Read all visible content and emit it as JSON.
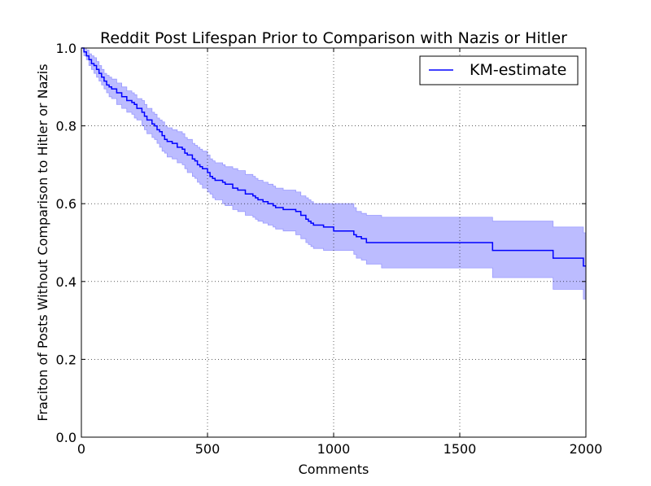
{
  "chart_data": {
    "type": "line",
    "title": "Reddit Post Lifespan Prior to Comparison with Nazis or Hitler",
    "xlabel": "Comments",
    "ylabel": "Fraciton of Posts Without Comparison to Hitler or Nazis",
    "xlim": [
      0,
      2000
    ],
    "ylim": [
      0.0,
      1.0
    ],
    "xticks": [
      "0",
      "500",
      "1000",
      "1500",
      "2000"
    ],
    "yticks": [
      "0.0",
      "0.2",
      "0.4",
      "0.6",
      "0.8",
      "1.0"
    ],
    "grid": true,
    "legend_position": "top-right",
    "colors": {
      "line": "#0000ff",
      "band": "#b8b8ff",
      "band_edge": "#9a9aff"
    },
    "series": [
      {
        "name": "KM-estimate",
        "style": "step",
        "x": [
          0,
          10,
          20,
          30,
          40,
          50,
          60,
          70,
          80,
          90,
          100,
          110,
          120,
          140,
          160,
          180,
          200,
          210,
          220,
          240,
          250,
          260,
          280,
          290,
          300,
          310,
          320,
          330,
          340,
          360,
          380,
          400,
          410,
          420,
          440,
          450,
          460,
          470,
          480,
          500,
          510,
          520,
          530,
          560,
          570,
          600,
          620,
          650,
          680,
          690,
          700,
          720,
          740,
          760,
          770,
          800,
          850,
          870,
          890,
          900,
          910,
          920,
          960,
          1000,
          1080,
          1090,
          1110,
          1130,
          1190,
          1630,
          1870,
          1990,
          2000
        ],
        "y": [
          1.0,
          0.99,
          0.98,
          0.97,
          0.96,
          0.955,
          0.945,
          0.935,
          0.925,
          0.915,
          0.905,
          0.9,
          0.895,
          0.885,
          0.875,
          0.865,
          0.86,
          0.855,
          0.845,
          0.835,
          0.825,
          0.815,
          0.805,
          0.8,
          0.79,
          0.785,
          0.775,
          0.765,
          0.76,
          0.755,
          0.745,
          0.74,
          0.73,
          0.725,
          0.715,
          0.71,
          0.7,
          0.695,
          0.69,
          0.68,
          0.67,
          0.665,
          0.66,
          0.655,
          0.65,
          0.64,
          0.635,
          0.625,
          0.62,
          0.615,
          0.61,
          0.605,
          0.6,
          0.595,
          0.59,
          0.585,
          0.58,
          0.57,
          0.56,
          0.555,
          0.55,
          0.545,
          0.54,
          0.53,
          0.52,
          0.515,
          0.51,
          0.5,
          0.5,
          0.48,
          0.46,
          0.44,
          0.44
        ]
      }
    ],
    "confidence_band": {
      "x": [
        0,
        10,
        20,
        30,
        40,
        50,
        60,
        70,
        80,
        90,
        100,
        110,
        120,
        140,
        160,
        180,
        200,
        210,
        220,
        240,
        250,
        260,
        280,
        290,
        300,
        310,
        320,
        330,
        340,
        360,
        380,
        400,
        410,
        420,
        440,
        450,
        460,
        470,
        480,
        500,
        510,
        520,
        530,
        560,
        570,
        600,
        620,
        650,
        680,
        690,
        700,
        720,
        740,
        760,
        770,
        800,
        850,
        870,
        890,
        900,
        910,
        920,
        960,
        1000,
        1080,
        1090,
        1110,
        1130,
        1190,
        1630,
        1870,
        1990,
        2000
      ],
      "upper": [
        1.0,
        1.0,
        0.995,
        0.985,
        0.98,
        0.975,
        0.965,
        0.955,
        0.945,
        0.935,
        0.93,
        0.925,
        0.92,
        0.91,
        0.9,
        0.89,
        0.885,
        0.88,
        0.87,
        0.865,
        0.855,
        0.845,
        0.835,
        0.83,
        0.82,
        0.815,
        0.81,
        0.8,
        0.795,
        0.79,
        0.785,
        0.78,
        0.77,
        0.765,
        0.755,
        0.75,
        0.745,
        0.74,
        0.735,
        0.725,
        0.715,
        0.71,
        0.705,
        0.7,
        0.695,
        0.69,
        0.685,
        0.675,
        0.67,
        0.665,
        0.66,
        0.655,
        0.65,
        0.645,
        0.64,
        0.635,
        0.63,
        0.62,
        0.615,
        0.61,
        0.605,
        0.6,
        0.6,
        0.6,
        0.59,
        0.58,
        0.575,
        0.57,
        0.565,
        0.555,
        0.54,
        0.525,
        0.525
      ],
      "lower": [
        1.0,
        0.98,
        0.97,
        0.955,
        0.945,
        0.935,
        0.925,
        0.915,
        0.905,
        0.895,
        0.885,
        0.875,
        0.87,
        0.855,
        0.845,
        0.835,
        0.83,
        0.82,
        0.815,
        0.8,
        0.79,
        0.78,
        0.77,
        0.765,
        0.755,
        0.745,
        0.735,
        0.73,
        0.72,
        0.715,
        0.705,
        0.7,
        0.69,
        0.68,
        0.67,
        0.665,
        0.655,
        0.65,
        0.64,
        0.63,
        0.625,
        0.615,
        0.61,
        0.6,
        0.595,
        0.585,
        0.58,
        0.57,
        0.565,
        0.56,
        0.555,
        0.55,
        0.545,
        0.54,
        0.535,
        0.53,
        0.52,
        0.51,
        0.5,
        0.495,
        0.49,
        0.485,
        0.48,
        0.48,
        0.47,
        0.46,
        0.455,
        0.445,
        0.435,
        0.41,
        0.38,
        0.355,
        0.355
      ]
    }
  }
}
